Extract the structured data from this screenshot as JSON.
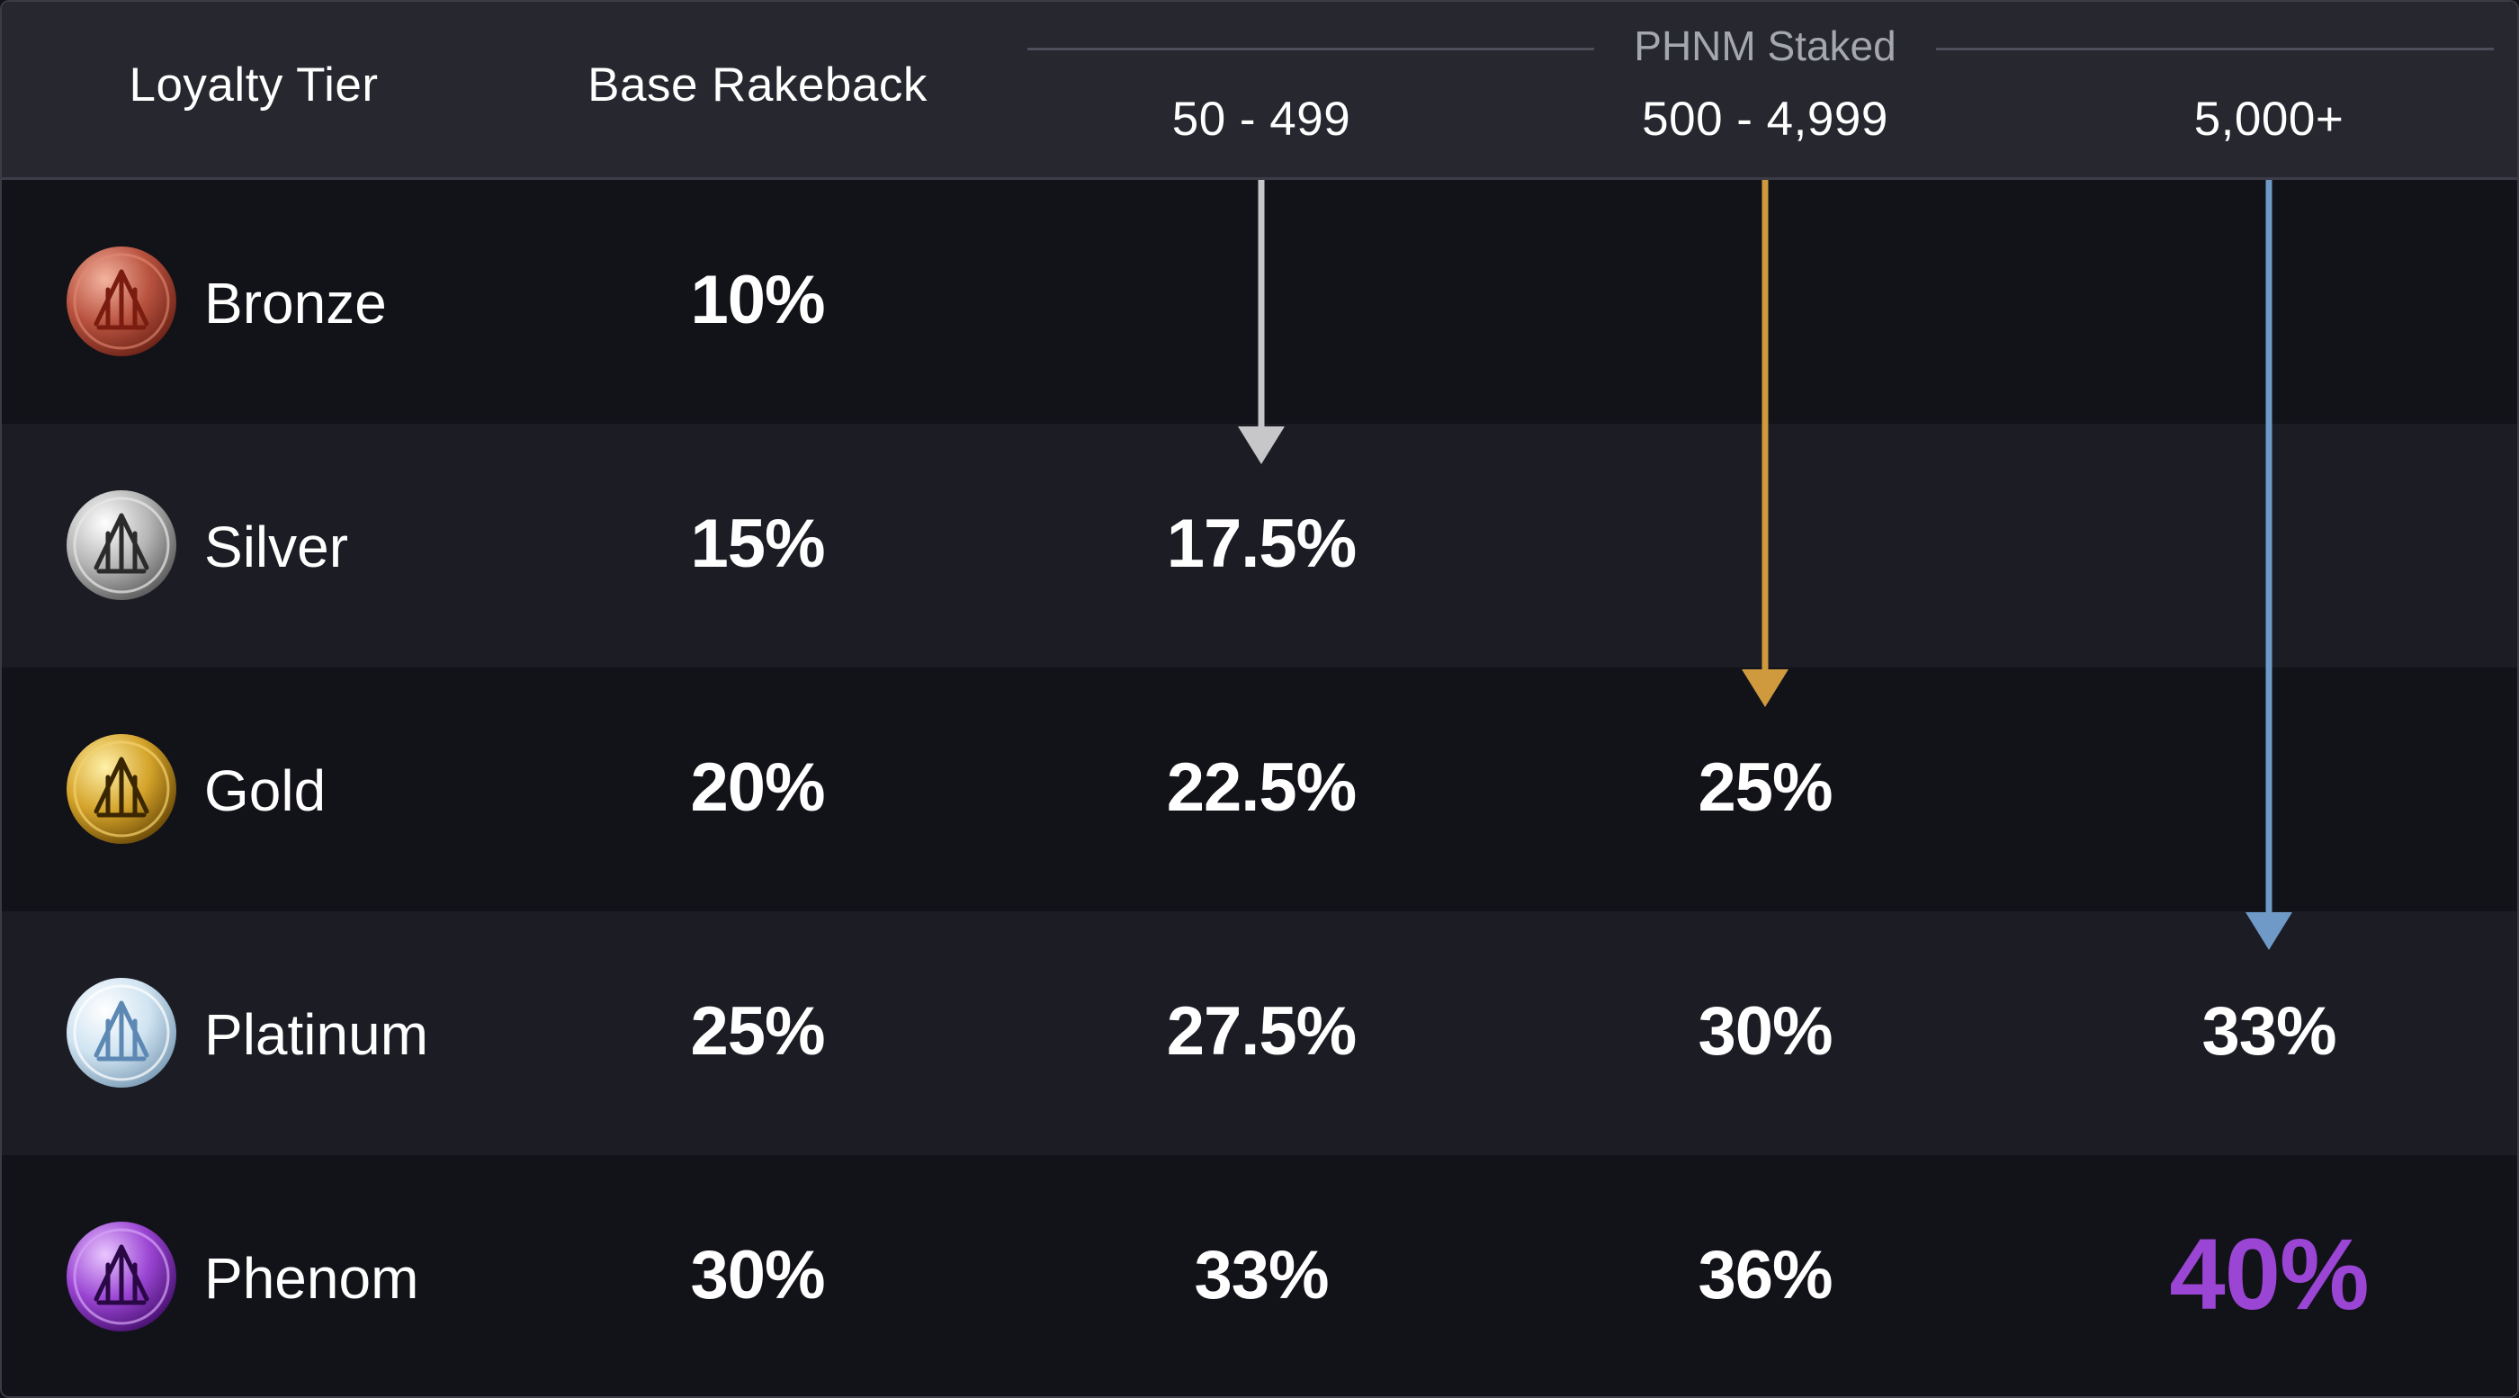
{
  "header": {
    "tier": "Loyalty Tier",
    "base": "Base Rakeback",
    "group": "PHNM Staked",
    "ranges": [
      "50 - 499",
      "500 - 4,999",
      "5,000+"
    ]
  },
  "tiers": [
    {
      "name": "Bronze",
      "base": "10%",
      "r1": "",
      "r2": "",
      "r3": "",
      "color": "#b8523f",
      "icon": "bronze-medal-icon"
    },
    {
      "name": "Silver",
      "base": "15%",
      "r1": "17.5%",
      "r2": "",
      "r3": "",
      "color": "#c9c9c9",
      "icon": "silver-medal-icon"
    },
    {
      "name": "Gold",
      "base": "20%",
      "r1": "22.5%",
      "r2": "25%",
      "r3": "",
      "color": "#d4a32a",
      "icon": "gold-medal-icon"
    },
    {
      "name": "Platinum",
      "base": "25%",
      "r1": "27.5%",
      "r2": "30%",
      "r3": "33%",
      "color": "#cfe3f1",
      "icon": "platinum-medal-icon"
    },
    {
      "name": "Phenom",
      "base": "30%",
      "r1": "33%",
      "r2": "36%",
      "r3": "40%",
      "color": "#9a45d3",
      "icon": "phenom-medal-icon"
    }
  ],
  "arrows": [
    {
      "name": "arrow-50-499",
      "color": "#c7c7c9",
      "target_tier": "Silver"
    },
    {
      "name": "arrow-500-4999",
      "color": "#cf9a3d",
      "target_tier": "Gold"
    },
    {
      "name": "arrow-5000-plus",
      "color": "#6f9ac7",
      "target_tier": "Platinum"
    }
  ],
  "highlight_color": "#9a45d3"
}
